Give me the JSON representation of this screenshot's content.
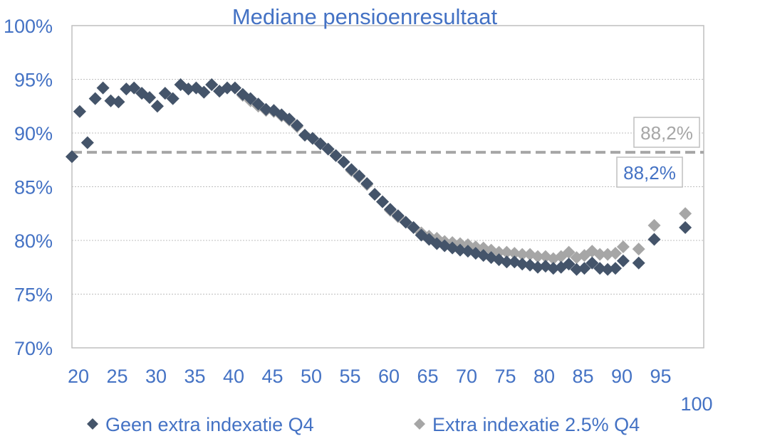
{
  "chart_data": {
    "type": "scatter",
    "title": "Mediane pensioenresultaat",
    "xlabel": "",
    "ylabel": "",
    "xlim": [
      20,
      100
    ],
    "ylim": [
      70,
      100
    ],
    "x_ticks": [
      "20",
      "25",
      "30",
      "35",
      "40",
      "45",
      "50",
      "55",
      "60",
      "65",
      "70",
      "75",
      "80",
      "85",
      "90",
      "95",
      "100"
    ],
    "y_ticks": [
      "70%",
      "75%",
      "80%",
      "85%",
      "90%",
      "95%",
      "100%"
    ],
    "grid": true,
    "legend_position": "bottom",
    "series": [
      {
        "name": "Geen extra indexatie Q4",
        "color": "#44546a",
        "marker": "diamond",
        "points": [
          [
            20,
            87.8
          ],
          [
            21,
            92.0
          ],
          [
            22,
            89.1
          ],
          [
            23,
            93.2
          ],
          [
            24,
            94.2
          ],
          [
            25,
            93.0
          ],
          [
            26,
            92.9
          ],
          [
            27,
            94.1
          ],
          [
            28,
            94.2
          ],
          [
            29,
            93.7
          ],
          [
            30,
            93.3
          ],
          [
            31,
            92.5
          ],
          [
            32,
            93.7
          ],
          [
            33,
            93.2
          ],
          [
            34,
            94.5
          ],
          [
            35,
            94.1
          ],
          [
            36,
            94.2
          ],
          [
            37,
            93.8
          ],
          [
            38,
            94.5
          ],
          [
            39,
            93.9
          ],
          [
            40,
            94.2
          ],
          [
            41,
            94.2
          ],
          [
            42,
            93.6
          ],
          [
            43,
            93.2
          ],
          [
            44,
            92.7
          ],
          [
            45,
            92.2
          ],
          [
            46,
            92.1
          ],
          [
            47,
            91.7
          ],
          [
            48,
            91.3
          ],
          [
            49,
            90.7
          ],
          [
            50,
            89.8
          ],
          [
            51,
            89.5
          ],
          [
            52,
            89.0
          ],
          [
            53,
            88.5
          ],
          [
            54,
            87.9
          ],
          [
            55,
            87.3
          ],
          [
            56,
            86.6
          ],
          [
            57,
            86.0
          ],
          [
            58,
            85.3
          ],
          [
            59,
            84.3
          ],
          [
            60,
            83.6
          ],
          [
            61,
            82.9
          ],
          [
            62,
            82.3
          ],
          [
            63,
            81.7
          ],
          [
            64,
            81.2
          ],
          [
            65,
            80.5
          ],
          [
            66,
            80.1
          ],
          [
            67,
            79.7
          ],
          [
            68,
            79.5
          ],
          [
            69,
            79.3
          ],
          [
            70,
            79.1
          ],
          [
            71,
            79.0
          ],
          [
            72,
            78.8
          ],
          [
            73,
            78.6
          ],
          [
            74,
            78.4
          ],
          [
            75,
            78.2
          ],
          [
            76,
            78.0
          ],
          [
            77,
            78.0
          ],
          [
            78,
            77.8
          ],
          [
            79,
            77.7
          ],
          [
            80,
            77.5
          ],
          [
            81,
            77.6
          ],
          [
            82,
            77.4
          ],
          [
            83,
            77.5
          ],
          [
            84,
            77.8
          ],
          [
            85,
            77.3
          ],
          [
            86,
            77.4
          ],
          [
            87,
            77.9
          ],
          [
            88,
            77.4
          ],
          [
            89,
            77.3
          ],
          [
            90,
            77.4
          ],
          [
            91,
            78.1
          ],
          [
            93,
            77.9
          ],
          [
            95,
            80.1
          ],
          [
            99,
            81.2
          ]
        ]
      },
      {
        "name": "Extra indexatie 2.5% Q4",
        "color": "#a6a6a6",
        "marker": "diamond",
        "points": [
          [
            20,
            87.8
          ],
          [
            21,
            92.0
          ],
          [
            22,
            89.1
          ],
          [
            23,
            93.2
          ],
          [
            24,
            94.2
          ],
          [
            25,
            93.0
          ],
          [
            26,
            92.9
          ],
          [
            27,
            94.1
          ],
          [
            28,
            94.2
          ],
          [
            29,
            93.7
          ],
          [
            30,
            93.3
          ],
          [
            31,
            92.5
          ],
          [
            32,
            93.7
          ],
          [
            33,
            93.2
          ],
          [
            34,
            94.5
          ],
          [
            35,
            94.1
          ],
          [
            36,
            94.2
          ],
          [
            37,
            93.8
          ],
          [
            38,
            94.5
          ],
          [
            39,
            93.9
          ],
          [
            40,
            94.2
          ],
          [
            41,
            94.2
          ],
          [
            42,
            93.5
          ],
          [
            43,
            93.0
          ],
          [
            44,
            92.5
          ],
          [
            45,
            92.1
          ],
          [
            46,
            92.0
          ],
          [
            47,
            91.6
          ],
          [
            48,
            91.2
          ],
          [
            49,
            90.6
          ],
          [
            50,
            89.8
          ],
          [
            51,
            89.5
          ],
          [
            52,
            89.0
          ],
          [
            53,
            88.5
          ],
          [
            54,
            87.9
          ],
          [
            55,
            87.3
          ],
          [
            56,
            86.5
          ],
          [
            57,
            85.9
          ],
          [
            58,
            85.2
          ],
          [
            59,
            84.3
          ],
          [
            60,
            83.6
          ],
          [
            61,
            82.8
          ],
          [
            62,
            82.2
          ],
          [
            63,
            81.7
          ],
          [
            64,
            81.2
          ],
          [
            65,
            80.7
          ],
          [
            66,
            80.4
          ],
          [
            67,
            80.2
          ],
          [
            68,
            79.9
          ],
          [
            69,
            79.8
          ],
          [
            70,
            79.7
          ],
          [
            71,
            79.6
          ],
          [
            72,
            79.4
          ],
          [
            73,
            79.3
          ],
          [
            74,
            79.1
          ],
          [
            75,
            78.9
          ],
          [
            76,
            78.9
          ],
          [
            77,
            78.8
          ],
          [
            78,
            78.7
          ],
          [
            79,
            78.7
          ],
          [
            80,
            78.5
          ],
          [
            81,
            78.5
          ],
          [
            82,
            78.3
          ],
          [
            83,
            78.5
          ],
          [
            84,
            78.9
          ],
          [
            85,
            78.4
          ],
          [
            86,
            78.6
          ],
          [
            87,
            79.0
          ],
          [
            88,
            78.7
          ],
          [
            89,
            78.7
          ],
          [
            90,
            78.8
          ],
          [
            91,
            79.4
          ],
          [
            93,
            79.2
          ],
          [
            95,
            81.4
          ],
          [
            99,
            82.5
          ]
        ]
      }
    ],
    "reference_line": {
      "value": 88.2,
      "style": "dashed",
      "color": "#a6a6a6"
    },
    "annotations": [
      {
        "text": "88,2%",
        "series": "Extra indexatie 2.5% Q4",
        "position": "above-right",
        "color": "#a6a6a6"
      },
      {
        "text": "88,2%",
        "series": "Geen extra indexatie Q4",
        "position": "below-right",
        "color": "#4472c4"
      }
    ]
  }
}
